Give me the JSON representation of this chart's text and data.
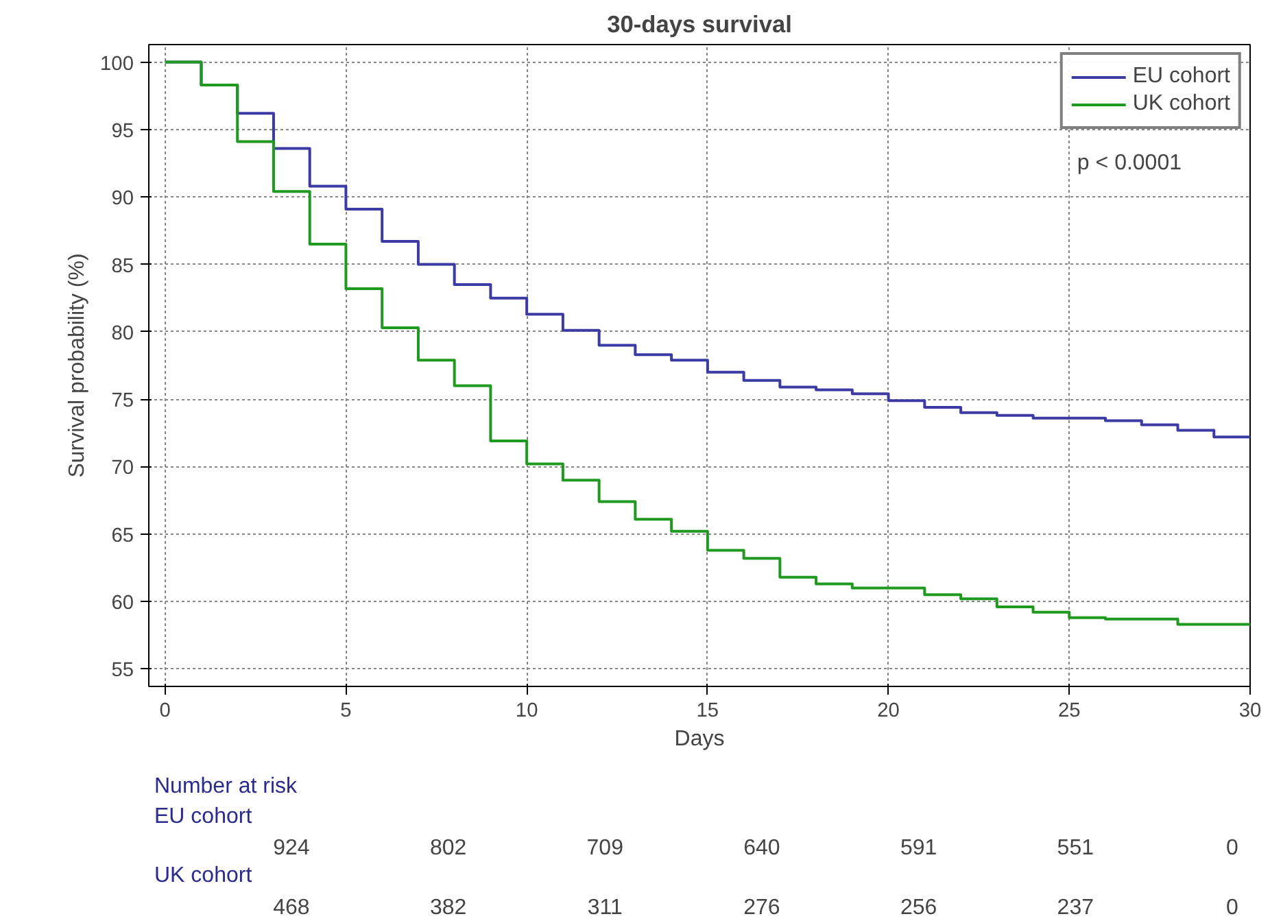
{
  "chart_data": {
    "type": "step",
    "title": "30-days survival",
    "xlabel": "Days",
    "ylabel": "Survival probability (%)",
    "x": [
      0,
      1,
      2,
      3,
      4,
      5,
      6,
      7,
      8,
      9,
      10,
      11,
      12,
      13,
      14,
      15,
      16,
      17,
      18,
      19,
      20,
      21,
      22,
      23,
      24,
      25,
      26,
      27,
      28,
      29,
      30
    ],
    "series": [
      {
        "name": "EU cohort",
        "color": "#3b3ba3",
        "values": [
          100,
          98.3,
          96.2,
          93.6,
          90.8,
          89.1,
          86.7,
          85.0,
          83.5,
          82.5,
          81.3,
          80.1,
          79.0,
          78.3,
          77.9,
          77.0,
          76.4,
          75.9,
          75.7,
          75.4,
          74.9,
          74.4,
          74.0,
          73.8,
          73.6,
          73.6,
          73.4,
          73.1,
          72.7,
          72.2,
          72.2
        ]
      },
      {
        "name": "UK cohort",
        "color": "#1f991f",
        "values": [
          100,
          98.3,
          94.1,
          90.4,
          86.5,
          83.2,
          80.3,
          77.9,
          76.0,
          71.9,
          70.2,
          69.0,
          67.4,
          66.1,
          65.2,
          63.8,
          63.2,
          61.8,
          61.3,
          61.0,
          61.0,
          60.5,
          60.2,
          59.6,
          59.2,
          58.8,
          58.7,
          58.7,
          58.3,
          58.3,
          58.3
        ]
      }
    ],
    "xlim": [
      -0.45,
      30
    ],
    "ylim": [
      53.7,
      101.3
    ],
    "xticks": [
      0,
      5,
      10,
      15,
      20,
      25,
      30
    ],
    "yticks": [
      55,
      60,
      65,
      70,
      75,
      80,
      85,
      90,
      95,
      100
    ],
    "grid": true,
    "legend": "top right",
    "annotations": [
      "p < 0.0001",
      "Number at risk",
      "EU cohort",
      "924",
      "802",
      "709",
      "640",
      "591",
      "551",
      "0",
      "UK cohort",
      "468",
      "382",
      "311",
      "276",
      "256",
      "237",
      "0"
    ]
  }
}
